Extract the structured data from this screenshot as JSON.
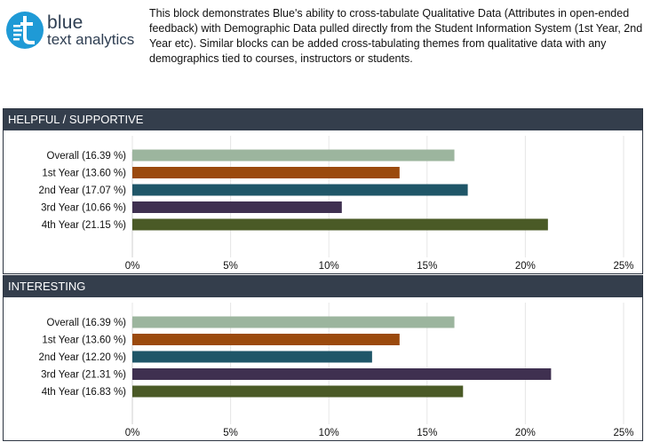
{
  "logo": {
    "line1": "blue",
    "line2": "text analytics",
    "brand_color": "#1f9ad6"
  },
  "description": "This block demonstrates Blue's ability to cross-tabulate Qualitative Data (Attributes in open-ended feedback) with Demographic Data pulled directly from the Student Information System (1st Year, 2nd Year etc). Similar blocks can be added cross-tabulating themes from qualitative data with any demographics tied to courses, instructors or students.",
  "chart_data": [
    {
      "type": "bar",
      "orientation": "horizontal",
      "title": "HELPFUL / SUPPORTIVE",
      "categories": [
        "Overall (16.39 %)",
        "1st Year (13.60 %)",
        "2nd Year (17.07 %)",
        "3rd Year (10.66 %)",
        "4th Year (21.15 %)"
      ],
      "values": [
        16.39,
        13.6,
        17.07,
        10.66,
        21.15
      ],
      "colors": [
        "#9cb59e",
        "#9b4a0d",
        "#1f5668",
        "#3f3050",
        "#4a5a26"
      ],
      "xlim": [
        0,
        25
      ],
      "xticks": [
        "0%",
        "5%",
        "10%",
        "15%",
        "20%",
        "25%"
      ],
      "grid": true
    },
    {
      "type": "bar",
      "orientation": "horizontal",
      "title": "INTERESTING",
      "categories": [
        "Overall (16.39 %)",
        "1st Year (13.60 %)",
        "2nd Year (12.20 %)",
        "3rd Year (21.31 %)",
        "4th Year (16.83 %)"
      ],
      "values": [
        16.39,
        13.6,
        12.2,
        21.31,
        16.83
      ],
      "colors": [
        "#9cb59e",
        "#9b4a0d",
        "#1f5668",
        "#3f3050",
        "#4a5a26"
      ],
      "xlim": [
        0,
        25
      ],
      "xticks": [
        "0%",
        "5%",
        "10%",
        "15%",
        "20%",
        "25%"
      ],
      "grid": true
    }
  ]
}
